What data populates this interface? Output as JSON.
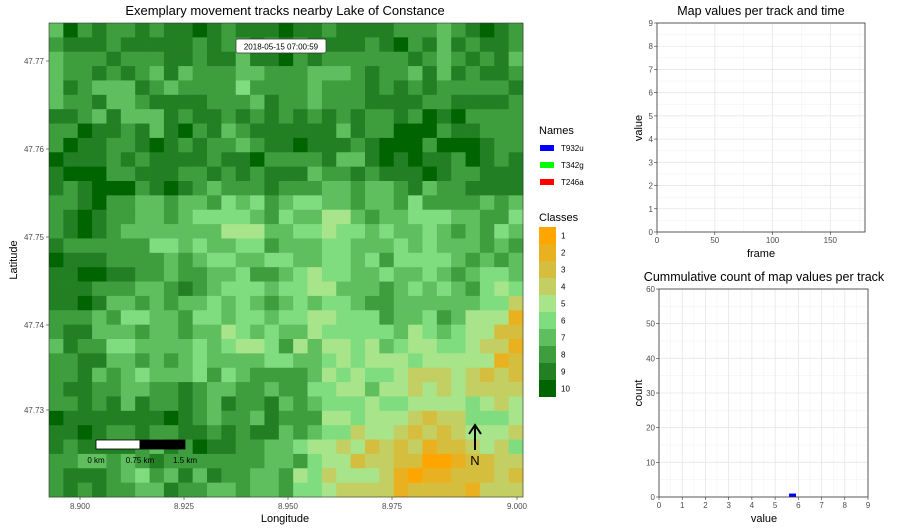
{
  "map_panel": {
    "title": "Exemplary movement tracks nearby Lake of Constance",
    "timestamp": "2018-05-15 07:00:59",
    "x_label": "Longitude",
    "y_label": "Latitude",
    "x_ticks": [
      "8.900",
      "8.925",
      "8.950",
      "8.975",
      "9.000"
    ],
    "y_ticks": [
      "47.73",
      "47.74",
      "47.75",
      "47.76",
      "47.77"
    ],
    "scalebar_labels": [
      "0 km",
      "0.75 km",
      "1.5 km"
    ],
    "north_label": "N"
  },
  "legend": {
    "names_title": "Names",
    "names": [
      {
        "label": "T932u",
        "color": "#0000ff"
      },
      {
        "label": "T342g",
        "color": "#00ff00"
      },
      {
        "label": "T246a",
        "color": "#ff0000"
      }
    ],
    "classes_title": "Classes",
    "classes": [
      {
        "label": "1",
        "color": "#ffa500"
      },
      {
        "label": "2",
        "color": "#e9b120"
      },
      {
        "label": "3",
        "color": "#d5be3d"
      },
      {
        "label": "4",
        "color": "#c4cf63"
      },
      {
        "label": "5",
        "color": "#a8e48a"
      },
      {
        "label": "6",
        "color": "#7fdd7f"
      },
      {
        "label": "7",
        "color": "#5fbf5f"
      },
      {
        "label": "8",
        "color": "#3e9e3e"
      },
      {
        "label": "9",
        "color": "#237f23"
      },
      {
        "label": "10",
        "color": "#006400"
      }
    ]
  },
  "chart_data": [
    {
      "type": "line",
      "title": "Map values per track and time",
      "xlabel": "frame",
      "ylabel": "value",
      "xlim": [
        0,
        180
      ],
      "ylim": [
        0,
        9
      ],
      "x_ticks": [
        "0",
        "50",
        "100",
        "150"
      ],
      "y_ticks": [
        "0",
        "1",
        "2",
        "3",
        "4",
        "5",
        "6",
        "7",
        "8",
        "9"
      ],
      "series": []
    },
    {
      "type": "bar",
      "title": "Cummulative count of map values per track",
      "xlabel": "value",
      "ylabel": "count",
      "xlim": [
        0,
        9
      ],
      "ylim": [
        0,
        60
      ],
      "x_ticks": [
        "0",
        "1",
        "2",
        "3",
        "4",
        "5",
        "6",
        "7",
        "8",
        "9"
      ],
      "y_ticks": [
        "0",
        "10",
        "20",
        "30",
        "40",
        "50",
        "60"
      ],
      "bars": [
        {
          "x_start": 5.6,
          "x_end": 5.9,
          "count": 1,
          "color": "#0000ff"
        }
      ]
    }
  ]
}
